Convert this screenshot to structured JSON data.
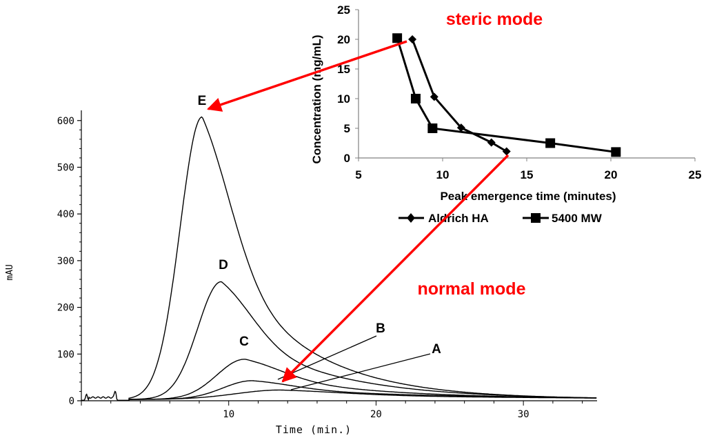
{
  "chart_data": [
    {
      "type": "line",
      "title": "",
      "xlabel": "Time (min.)",
      "ylabel": "mAU",
      "xlim": [
        0,
        35
      ],
      "ylim": [
        0,
        610
      ],
      "x_ticks": [
        10,
        20,
        30
      ],
      "y_ticks": [
        0,
        100,
        200,
        300,
        400,
        500,
        600
      ],
      "grid": false,
      "series": [
        {
          "name": "E",
          "peak_time": 8.2,
          "peak_height": 605,
          "rise_width": 1.5,
          "tail_decay": 5.5
        },
        {
          "name": "D",
          "peak_time": 9.5,
          "peak_height": 252,
          "rise_width": 1.6,
          "tail_decay": 6.5
        },
        {
          "name": "C",
          "peak_time": 11.1,
          "peak_height": 86,
          "rise_width": 1.9,
          "tail_decay": 8.0
        },
        {
          "name": "B",
          "peak_time": 11.6,
          "peak_height": 40,
          "rise_width": 2.0,
          "tail_decay": 11.0
        },
        {
          "name": "A",
          "peak_time": 13.5,
          "peak_height": 20,
          "rise_width": 3.0,
          "tail_decay": 14.0
        }
      ],
      "baseline_noise": {
        "bumps": [
          {
            "time": 0.35,
            "height": 13
          },
          {
            "time": 2.3,
            "height": 14
          }
        ],
        "level": 6
      },
      "annotations": [
        "A",
        "B",
        "C",
        "D",
        "E",
        "normal mode"
      ]
    },
    {
      "type": "line",
      "title": "",
      "xlabel": "Peak emergence time (minutes)",
      "ylabel": "Concentration (mg/mL)",
      "xlim": [
        5,
        25
      ],
      "ylim": [
        0,
        25
      ],
      "x_ticks": [
        5,
        10,
        15,
        20,
        25
      ],
      "y_ticks": [
        0,
        5,
        10,
        15,
        20,
        25
      ],
      "legend": "bottom",
      "series": [
        {
          "name": "Aldrich HA",
          "marker": "diamond",
          "x": [
            8.2,
            9.5,
            11.1,
            12.9,
            13.8
          ],
          "y": [
            20,
            10.3,
            5.1,
            2.6,
            1.1
          ]
        },
        {
          "name": "5400 MW",
          "marker": "square",
          "x": [
            7.3,
            8.4,
            9.4,
            16.4,
            20.3
          ],
          "y": [
            20.2,
            10,
            5,
            2.5,
            1
          ]
        }
      ],
      "annotations": [
        "steric mode"
      ]
    }
  ],
  "text": {
    "steric_mode": "steric mode",
    "normal_mode": "normal mode",
    "time_label": "Time (min.)",
    "mau_label": "mAU",
    "inset_xlabel": "Peak emergence time (minutes)",
    "inset_ylabel": "Concentration (mg/mL)",
    "legend_aldrich": "Aldrich HA",
    "legend_5400": "5400 MW",
    "label_A": "A",
    "label_B": "B",
    "label_C": "C",
    "label_D": "D",
    "label_E": "E"
  },
  "colors": {
    "arrow": "#ff0000",
    "mode_text": "#ff0000",
    "ink": "#000000",
    "inset_axis": "#808080"
  }
}
